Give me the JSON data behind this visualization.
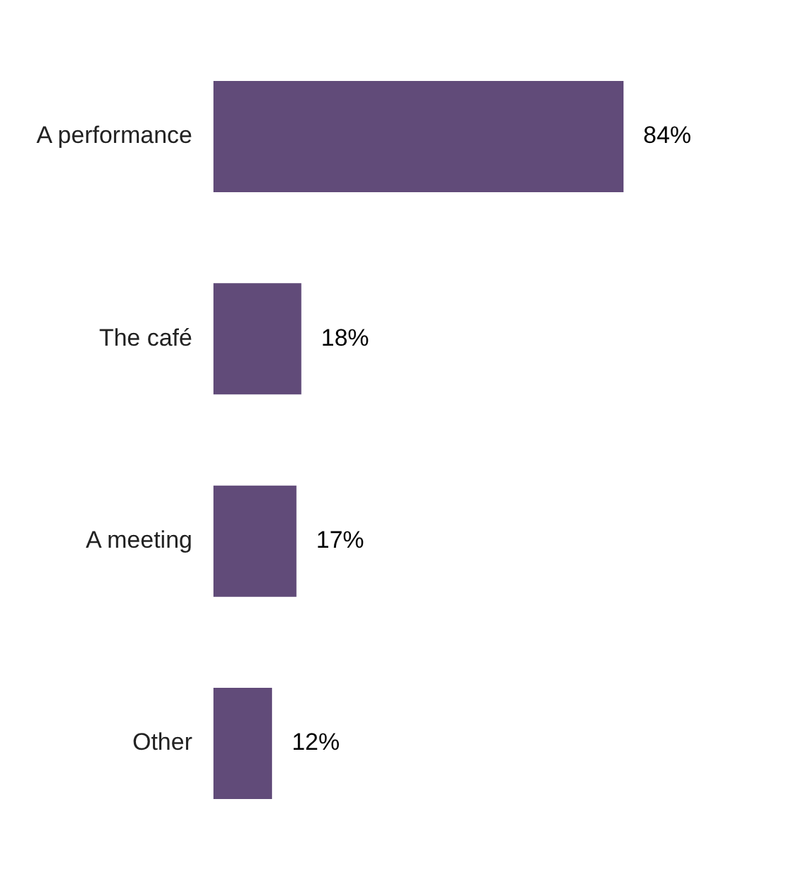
{
  "chart_data": {
    "type": "bar",
    "orientation": "horizontal",
    "categories": [
      "A performance",
      "The café",
      "A meeting",
      "Other"
    ],
    "values": [
      84,
      18,
      17,
      12
    ],
    "color": "#614b79",
    "value_labels": [
      "84%",
      "18%",
      "17%",
      "12%"
    ],
    "tick_labels": "y"
  }
}
